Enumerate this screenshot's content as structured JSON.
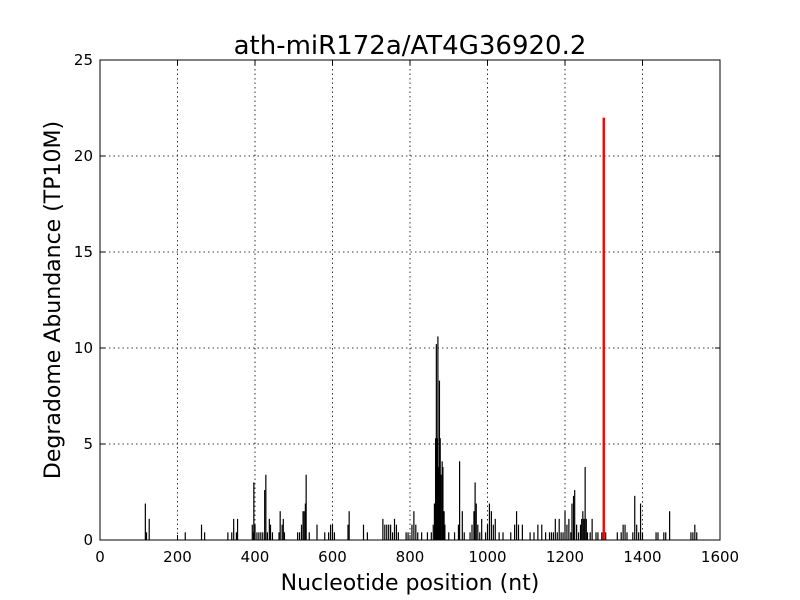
{
  "chart_data": {
    "type": "bar",
    "title": "ath-miR172a/AT4G36920.2",
    "xlabel": "Nucleotide position (nt)",
    "ylabel": "Degradome Abundance (TP10M)",
    "xlim": [
      0,
      1600
    ],
    "ylim": [
      0,
      25
    ],
    "xticks": [
      "0",
      "200",
      "400",
      "600",
      "800",
      "1000",
      "1200",
      "1400",
      "1600"
    ],
    "yticks": [
      "0",
      "5",
      "10",
      "15",
      "20",
      "25"
    ],
    "grid": true,
    "colors": {
      "background": "#ffffff",
      "bars": "#000000",
      "target": "#ff0000"
    },
    "series": [
      {
        "values": [
          [
            117,
            1.9
          ],
          [
            120,
            0.4
          ],
          [
            127,
            1.1
          ],
          [
            220,
            0.4
          ],
          [
            262,
            0.8
          ],
          [
            270,
            0.4
          ],
          [
            330,
            0.4
          ],
          [
            340,
            0.4
          ],
          [
            345,
            1.1
          ],
          [
            352,
            0.4
          ],
          [
            355,
            1.1
          ],
          [
            393,
            0.8
          ],
          [
            396,
            0.4
          ],
          [
            397,
            3.0
          ],
          [
            400,
            0.8
          ],
          [
            405,
            0.4
          ],
          [
            410,
            0.4
          ],
          [
            415,
            0.4
          ],
          [
            420,
            0.4
          ],
          [
            425,
            2.6
          ],
          [
            428,
            3.4
          ],
          [
            432,
            0.4
          ],
          [
            437,
            1.1
          ],
          [
            440,
            0.8
          ],
          [
            445,
            0.4
          ],
          [
            462,
            0.4
          ],
          [
            465,
            1.5
          ],
          [
            470,
            0.8
          ],
          [
            473,
            1.1
          ],
          [
            476,
            0.4
          ],
          [
            510,
            0.4
          ],
          [
            515,
            0.4
          ],
          [
            520,
            0.8
          ],
          [
            524,
            1.5
          ],
          [
            527,
            1.5
          ],
          [
            530,
            1.9
          ],
          [
            532,
            3.4
          ],
          [
            540,
            0.4
          ],
          [
            560,
            0.8
          ],
          [
            580,
            0.4
          ],
          [
            590,
            0.4
          ],
          [
            595,
            0.8
          ],
          [
            600,
            0.8
          ],
          [
            605,
            0.4
          ],
          [
            640,
            0.8
          ],
          [
            643,
            1.5
          ],
          [
            680,
            0.8
          ],
          [
            690,
            0.4
          ],
          [
            730,
            1.1
          ],
          [
            735,
            0.8
          ],
          [
            740,
            0.8
          ],
          [
            745,
            0.8
          ],
          [
            750,
            0.8
          ],
          [
            755,
            0.4
          ],
          [
            760,
            1.1
          ],
          [
            765,
            0.8
          ],
          [
            770,
            0.4
          ],
          [
            790,
            0.4
          ],
          [
            795,
            0.4
          ],
          [
            805,
            0.8
          ],
          [
            810,
            1.5
          ],
          [
            815,
            0.8
          ],
          [
            820,
            0.4
          ],
          [
            830,
            0.4
          ],
          [
            845,
            0.4
          ],
          [
            855,
            0.4
          ],
          [
            860,
            0.8
          ],
          [
            863,
            1.9
          ],
          [
            866,
            5.3
          ],
          [
            868,
            10.2
          ],
          [
            870,
            5.3
          ],
          [
            872,
            10.6
          ],
          [
            874,
            3.8
          ],
          [
            876,
            8.3
          ],
          [
            878,
            5.3
          ],
          [
            880,
            3.4
          ],
          [
            883,
            4.1
          ],
          [
            885,
            3.8
          ],
          [
            888,
            1.5
          ],
          [
            890,
            0.8
          ],
          [
            900,
            0.4
          ],
          [
            915,
            0.4
          ],
          [
            925,
            0.8
          ],
          [
            928,
            4.1
          ],
          [
            935,
            1.5
          ],
          [
            940,
            0.4
          ],
          [
            955,
            0.4
          ],
          [
            960,
            0.8
          ],
          [
            965,
            1.5
          ],
          [
            968,
            3.0
          ],
          [
            971,
            1.9
          ],
          [
            975,
            0.8
          ],
          [
            980,
            0.4
          ],
          [
            985,
            1.1
          ],
          [
            995,
            0.4
          ],
          [
            1000,
            0.8
          ],
          [
            1005,
            1.9
          ],
          [
            1010,
            1.5
          ],
          [
            1015,
            0.8
          ],
          [
            1020,
            1.1
          ],
          [
            1030,
            0.4
          ],
          [
            1040,
            0.4
          ],
          [
            1060,
            0.4
          ],
          [
            1070,
            0.8
          ],
          [
            1075,
            1.5
          ],
          [
            1080,
            0.8
          ],
          [
            1090,
            0.8
          ],
          [
            1110,
            0.4
          ],
          [
            1120,
            0.4
          ],
          [
            1130,
            0.8
          ],
          [
            1140,
            0.8
          ],
          [
            1150,
            0.4
          ],
          [
            1160,
            0.4
          ],
          [
            1165,
            0.4
          ],
          [
            1170,
            0.4
          ],
          [
            1175,
            1.1
          ],
          [
            1180,
            0.4
          ],
          [
            1185,
            1.1
          ],
          [
            1190,
            0.4
          ],
          [
            1195,
            0.4
          ],
          [
            1200,
            1.5
          ],
          [
            1205,
            0.8
          ],
          [
            1210,
            1.1
          ],
          [
            1215,
            0.4
          ],
          [
            1218,
            1.9
          ],
          [
            1222,
            2.3
          ],
          [
            1225,
            2.6
          ],
          [
            1230,
            0.8
          ],
          [
            1235,
            0.4
          ],
          [
            1240,
            0.8
          ],
          [
            1243,
            1.1
          ],
          [
            1246,
            1.5
          ],
          [
            1249,
            1.1
          ],
          [
            1252,
            3.8
          ],
          [
            1255,
            1.1
          ],
          [
            1258,
            0.4
          ],
          [
            1265,
            0.4
          ],
          [
            1270,
            1.1
          ],
          [
            1280,
            0.4
          ],
          [
            1285,
            0.4
          ],
          [
            1295,
            0.4
          ],
          [
            1305,
            0.4
          ],
          [
            1335,
            0.4
          ],
          [
            1345,
            0.4
          ],
          [
            1350,
            0.8
          ],
          [
            1355,
            0.8
          ],
          [
            1360,
            0.4
          ],
          [
            1375,
            0.4
          ],
          [
            1380,
            2.3
          ],
          [
            1385,
            0.8
          ],
          [
            1390,
            0.4
          ],
          [
            1395,
            1.9
          ],
          [
            1400,
            0.4
          ],
          [
            1435,
            0.4
          ],
          [
            1440,
            0.4
          ],
          [
            1455,
            0.4
          ],
          [
            1460,
            0.4
          ],
          [
            1470,
            1.5
          ],
          [
            1525,
            0.4
          ],
          [
            1530,
            0.4
          ],
          [
            1535,
            0.8
          ],
          [
            1540,
            0.4
          ]
        ]
      }
    ],
    "highlight": {
      "x": 1300,
      "y": 22.0,
      "color": "#ff0000"
    }
  }
}
